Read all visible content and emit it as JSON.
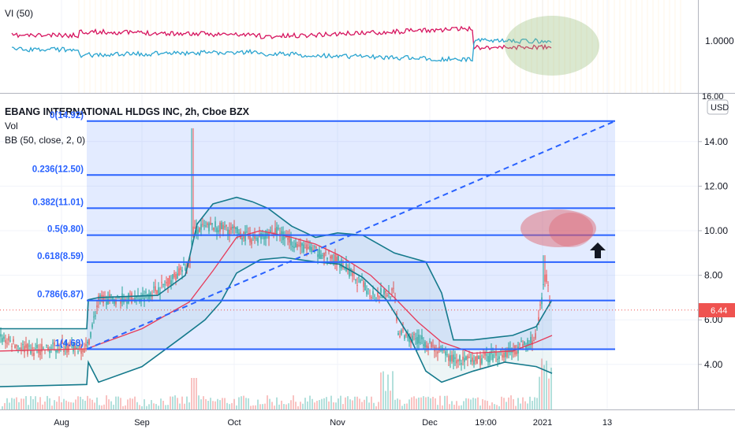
{
  "indicator_pane": {
    "title": "VI (50)",
    "axis_label": "1.0000",
    "axis_top_cut": "16.00"
  },
  "main_pane": {
    "symbol_title": "EBANG INTERNATIONAL HLDGS INC, 2h, Cboe BZX",
    "vol_label": "Vol",
    "bb_label": "BB (50, close, 2, 0)",
    "currency_button": "USD",
    "current_price": "6.44"
  },
  "fib_levels": [
    {
      "label": "0(14.92)",
      "price": 14.92
    },
    {
      "label": "0.236(12.50)",
      "price": 12.5
    },
    {
      "label": "0.382(11.01)",
      "price": 11.01
    },
    {
      "label": "0.5(9.80)",
      "price": 9.8
    },
    {
      "label": "0.618(8.59)",
      "price": 8.59
    },
    {
      "label": "0.786(6.87)",
      "price": 6.87
    },
    {
      "label": "1(4.68)",
      "price": 4.68
    }
  ],
  "price_axis_ticks": [
    "14.00",
    "12.00",
    "10.00",
    "8.00",
    "6.00",
    "4.00"
  ],
  "price_axis_values": [
    14,
    12,
    10,
    8,
    6,
    4
  ],
  "time_axis_labels": [
    "Aug",
    "Sep",
    "Oct",
    "Nov",
    "Dec",
    "19:00",
    "2021",
    "13"
  ],
  "colors": {
    "fib_line": "#2962ff",
    "fib_fill": "rgba(41,98,255,0.13)",
    "bb_band": "#157a8c",
    "bb_basis": "#e63b5a",
    "vi_plus": "#2aa4d0",
    "vi_minus": "#d6145f",
    "price_tag": "#ef5350",
    "highlight_green": "rgba(150,190,120,0.35)",
    "highlight_red": "rgba(220,90,100,0.45)"
  },
  "chart_data": {
    "type": "line",
    "title": "EBANG INTERNATIONAL HLDGS INC, 2h, Cboe BZX",
    "x": [
      "Aug",
      "Sep",
      "Oct",
      "Nov",
      "Dec",
      "19:00",
      "2021",
      "13"
    ],
    "price_series_approx": [
      {
        "date": "Jul",
        "close": 5.0
      },
      {
        "date": "Aug",
        "close": 4.8
      },
      {
        "date": "Aug mid",
        "close": 6.8
      },
      {
        "date": "Sep",
        "close": 7.2
      },
      {
        "date": "Sep mid",
        "close": 10.0
      },
      {
        "date": "Oct",
        "close": 10.0
      },
      {
        "date": "Oct mid",
        "close": 9.4
      },
      {
        "date": "Nov",
        "close": 8.6
      },
      {
        "date": "Nov mid",
        "close": 7.3
      },
      {
        "date": "Dec",
        "close": 5.3
      },
      {
        "date": "Dec mid",
        "close": 4.2
      },
      {
        "date": "19:00",
        "close": 4.5
      },
      {
        "date": "2021",
        "close": 7.2
      },
      {
        "date": "2021",
        "close": 6.44
      }
    ],
    "ylim": [
      2.0,
      15.3
    ],
    "indicator": "VI (50)",
    "indicator_reference": 1.0,
    "grid": true,
    "legend": "top-left"
  }
}
